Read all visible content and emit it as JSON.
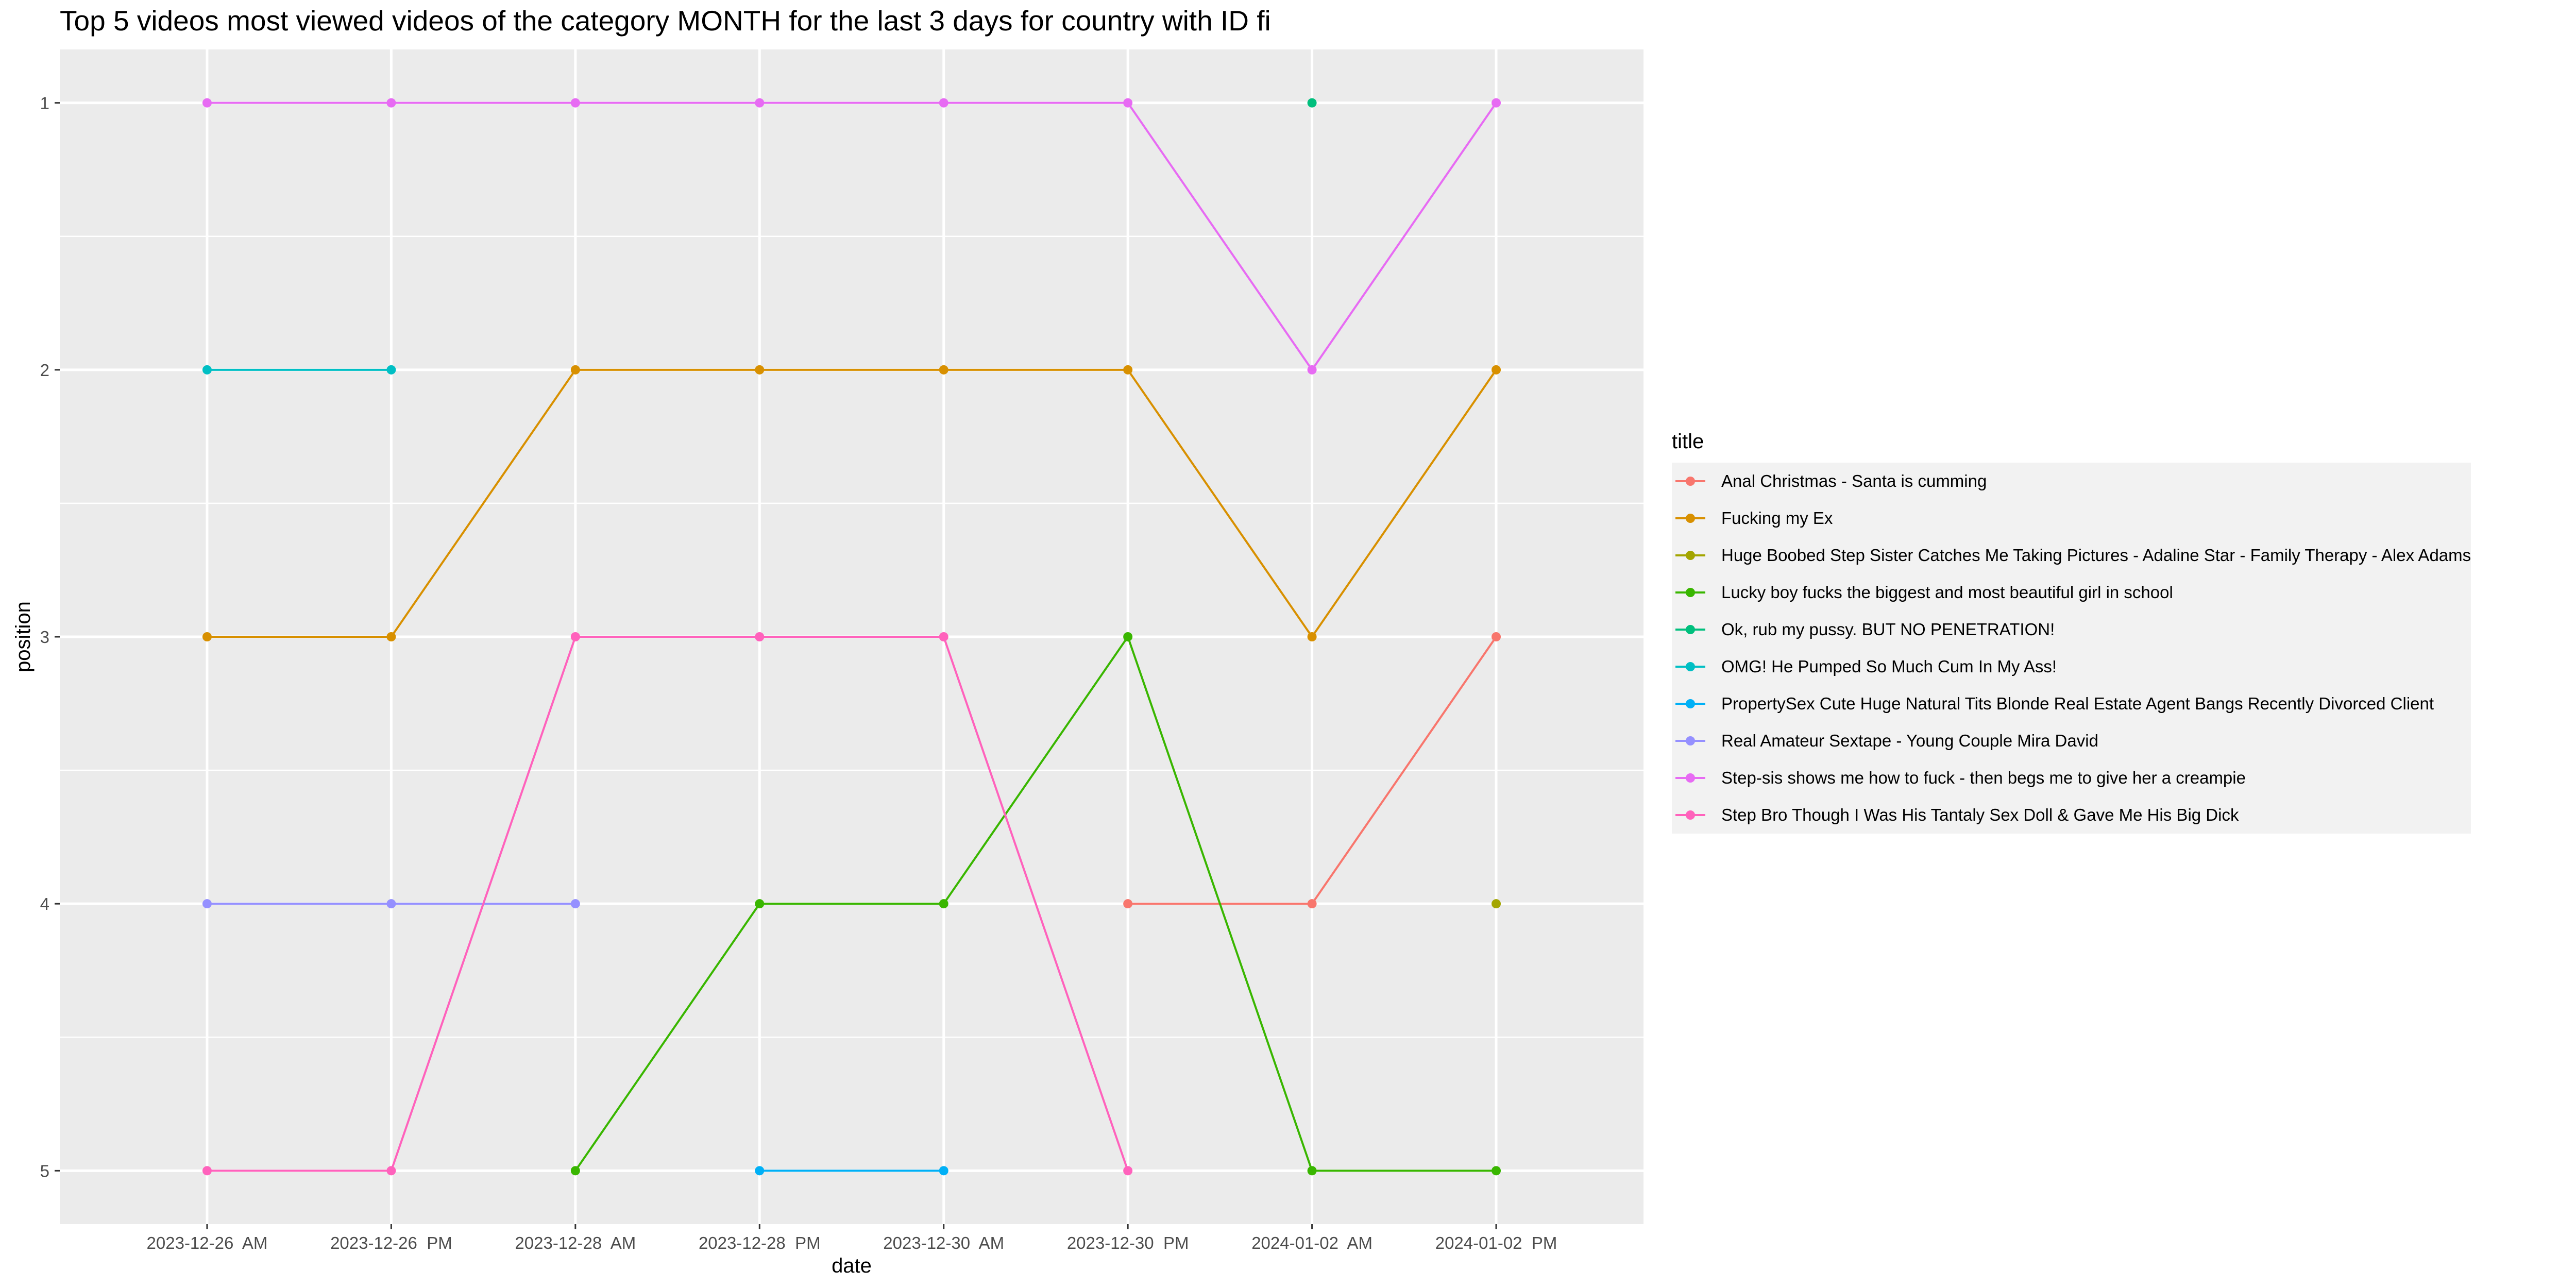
{
  "chart_data": {
    "type": "line",
    "title": "Top 5 videos most viewed videos of the category MONTH for the last 3 days for country with ID fi",
    "xlabel": "date",
    "ylabel": "position",
    "x_categories": [
      "2023-12-26  AM",
      "2023-12-26  PM",
      "2023-12-28  AM",
      "2023-12-28  PM",
      "2023-12-30  AM",
      "2023-12-30  PM",
      "2024-01-02  AM",
      "2024-01-02  PM"
    ],
    "y_ticks": [
      1,
      2,
      3,
      4,
      5
    ],
    "ylim": [
      1,
      5
    ],
    "y_reversed": true,
    "grid": true,
    "legend_title": "title",
    "legend_position": "right",
    "series": [
      {
        "name": "Anal Christmas - Santa is cumming",
        "color": "#F8766D",
        "values": [
          null,
          null,
          null,
          null,
          null,
          4,
          4,
          3
        ]
      },
      {
        "name": "Fucking my Ex",
        "color": "#D89000",
        "values": [
          3,
          3,
          2,
          2,
          2,
          2,
          3,
          2
        ]
      },
      {
        "name": "Huge Boobed Step Sister Catches Me Taking Pictures - Adaline Star - Family Therapy - Alex Adams",
        "color": "#A3A500",
        "values": [
          null,
          null,
          null,
          null,
          null,
          null,
          null,
          4
        ]
      },
      {
        "name": "Lucky boy fucks the biggest and most beautiful girl in school",
        "color": "#39B600",
        "values": [
          null,
          null,
          5,
          4,
          4,
          3,
          5,
          5
        ]
      },
      {
        "name": "Ok, rub my pussy. BUT NO PENETRATION!",
        "color": "#00BF7D",
        "values": [
          null,
          null,
          null,
          null,
          null,
          null,
          1,
          null
        ]
      },
      {
        "name": "OMG! He Pumped So Much Cum In My Ass!",
        "color": "#00BFC4",
        "values": [
          2,
          2,
          null,
          null,
          null,
          null,
          null,
          null
        ]
      },
      {
        "name": "PropertySex Cute Huge Natural Tits Blonde Real Estate Agent Bangs Recently Divorced Client",
        "color": "#00B0F6",
        "values": [
          null,
          null,
          null,
          5,
          5,
          null,
          null,
          null
        ]
      },
      {
        "name": "Real Amateur Sextape - Young Couple Mira David",
        "color": "#9590FF",
        "values": [
          4,
          4,
          4,
          null,
          null,
          null,
          null,
          null
        ]
      },
      {
        "name": "Step-sis shows me how to fuck - then begs me to give her a creampie",
        "color": "#E76BF3",
        "values": [
          1,
          1,
          1,
          1,
          1,
          1,
          2,
          1
        ]
      },
      {
        "name": "Step Bro Though I Was His Tantaly Sex Doll & Gave Me His Big Dick",
        "color": "#FF62BC",
        "values": [
          5,
          5,
          3,
          3,
          3,
          5,
          null,
          null
        ]
      }
    ]
  }
}
